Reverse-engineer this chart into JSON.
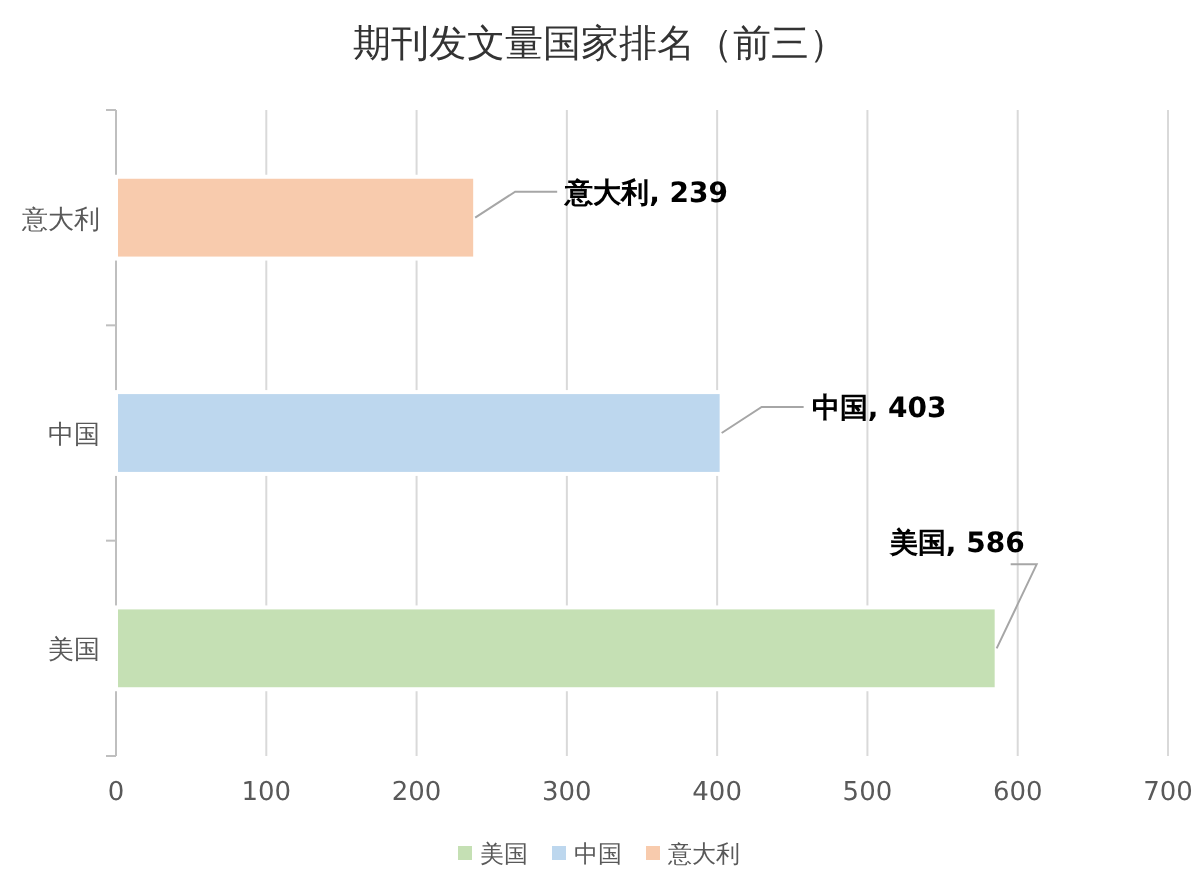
{
  "chart_data": {
    "type": "bar",
    "orientation": "horizontal",
    "title": "期刊发文量国家排名（前三）",
    "categories": [
      "意大利",
      "中国",
      "美国"
    ],
    "series": [
      {
        "name": "美国",
        "color": "#c5e0b4",
        "values": [
          null,
          null,
          586
        ],
        "value_labels": [
          null,
          null,
          "美国, 586"
        ]
      },
      {
        "name": "中国",
        "color": "#bdd7ee",
        "values": [
          null,
          403,
          null
        ],
        "value_labels": [
          null,
          "中国, 403",
          null
        ]
      },
      {
        "name": "意大利",
        "color": "#f8cbad",
        "values": [
          239,
          null,
          null
        ],
        "value_labels": [
          "意大利, 239",
          null,
          null
        ]
      }
    ],
    "xlim": [
      0,
      700
    ],
    "xticks": [
      0,
      100,
      200,
      300,
      400,
      500,
      600,
      700
    ],
    "grid": "x",
    "legend": "bottom"
  }
}
